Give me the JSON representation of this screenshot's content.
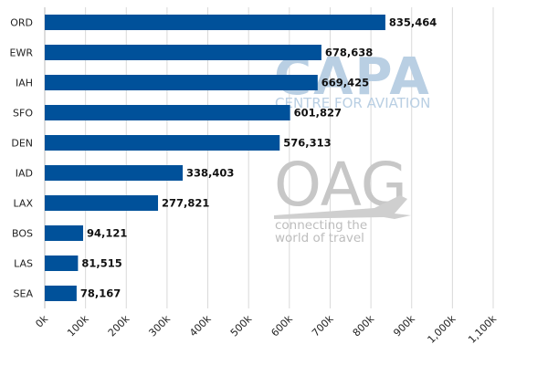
{
  "chart_data": {
    "type": "bar",
    "orientation": "horizontal",
    "categories": [
      "ORD",
      "EWR",
      "IAH",
      "SFO",
      "DEN",
      "IAD",
      "LAX",
      "BOS",
      "LAS",
      "SEA"
    ],
    "values": [
      835464,
      678638,
      669425,
      601827,
      576313,
      338403,
      277821,
      94121,
      81515,
      78167
    ],
    "value_labels": [
      "835,464",
      "678,638",
      "669,425",
      "601,827",
      "576,313",
      "338,403",
      "277,821",
      "94,121",
      "81,515",
      "78,167"
    ],
    "x_ticks": [
      "0k",
      "100k",
      "200k",
      "300k",
      "400k",
      "500k",
      "600k",
      "700k",
      "800k",
      "900k",
      "1,000k",
      "1,100k"
    ],
    "xlim": [
      0,
      1100000
    ],
    "grid": true,
    "bar_color": "#00519a",
    "title": "",
    "xlabel": "",
    "ylabel": ""
  },
  "watermark": {
    "capa_logo": "CAPA",
    "capa_tagline": "CENTRE FOR AVIATION",
    "oag_logo": "OAG",
    "oag_tagline_line1": "connecting the",
    "oag_tagline_line2": "world of travel"
  }
}
